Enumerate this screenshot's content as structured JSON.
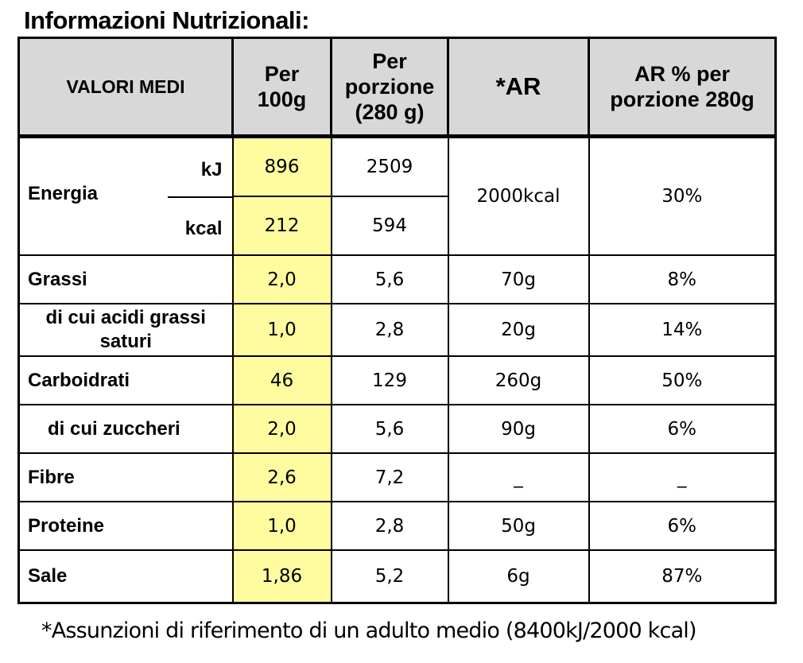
{
  "title": "Informazioni Nutrizionali:",
  "headers": {
    "valori_medi": "VALORI MEDI",
    "per_100g": [
      "Per",
      "100g"
    ],
    "per_porzione": [
      "Per",
      "porzione",
      "(280 g)"
    ],
    "ar": "*AR",
    "ar_porzione": [
      "AR % per",
      "porzione 280g"
    ]
  },
  "energia": {
    "label": "Energia",
    "kj_label": "kJ",
    "kcal_label": "kcal",
    "kj_100g": "896",
    "kj_porzione": "2509",
    "kcal_100g": "212",
    "kcal_porzione": "594",
    "ar": "2000kcal",
    "ar_pct": "30%"
  },
  "rows": [
    {
      "label": "Grassi",
      "per100": "2,0",
      "porzione": "5,6",
      "ar": "70g",
      "ar_pct": "8%"
    },
    {
      "label": "di cui acidi grassi saturi",
      "per100": "1,0",
      "porzione": "2,8",
      "ar": "20g",
      "ar_pct": "14%"
    },
    {
      "label": "Carboidrati",
      "per100": "46",
      "porzione": "129",
      "ar": "260g",
      "ar_pct": "50%"
    },
    {
      "label": "di cui zuccheri",
      "per100": "2,0",
      "porzione": "5,6",
      "ar": "90g",
      "ar_pct": "6%"
    },
    {
      "label": "Fibre",
      "per100": "2,6",
      "porzione": "7,2",
      "ar": "_",
      "ar_pct": "_"
    },
    {
      "label": "Proteine",
      "per100": "1,0",
      "porzione": "2,8",
      "ar": "50g",
      "ar_pct": "6%"
    },
    {
      "label": "Sale",
      "per100": "1,86",
      "porzione": "5,2",
      "ar": "6g",
      "ar_pct": "87%"
    }
  ],
  "colors": {
    "header_bg": "#d8d8d8",
    "highlight": "#fffca0"
  },
  "footnote": "*Assunzioni di riferimento di un adulto medio (8400kJ/2000 kcal)"
}
